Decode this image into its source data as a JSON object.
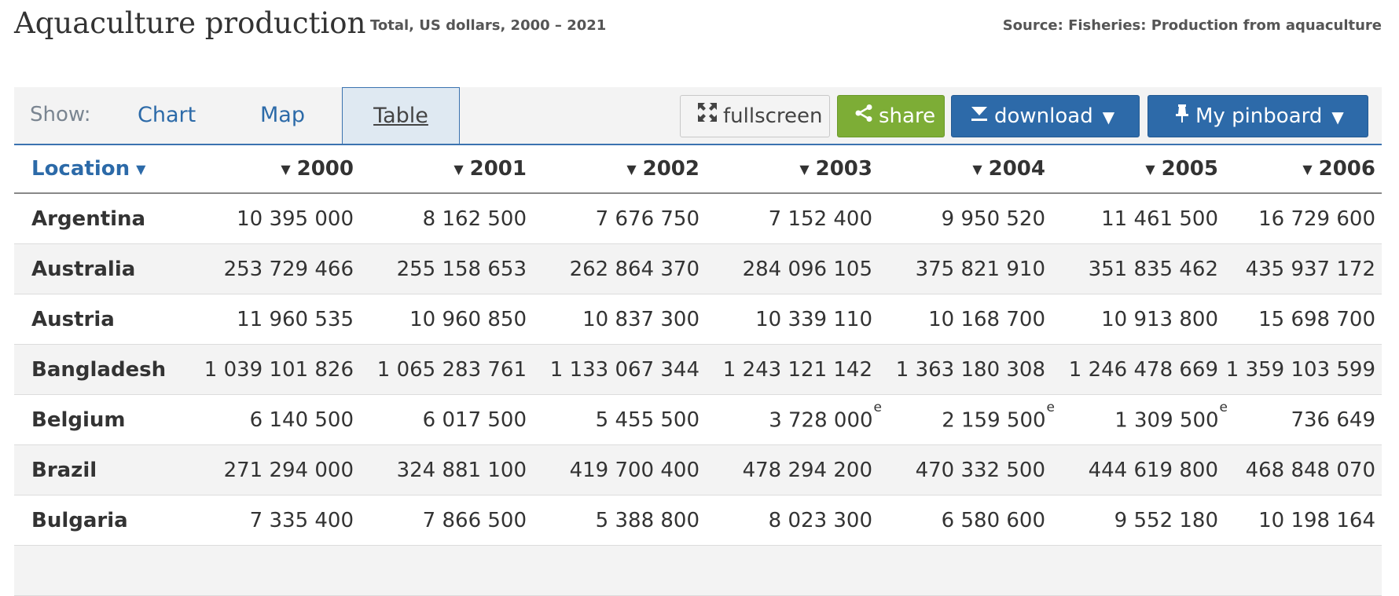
{
  "header": {
    "title": "Aquaculture production",
    "subtitle": "Total, US dollars, 2000 – 2021",
    "source": "Source: Fisheries: Production from aquaculture"
  },
  "toolbar": {
    "show_label": "Show:",
    "tabs": [
      {
        "label": "Chart"
      },
      {
        "label": "Map"
      },
      {
        "label": "Table",
        "active": true
      }
    ],
    "fullscreen_label": "fullscreen",
    "share_label": "share",
    "download_label": "download",
    "pinboard_label": "My pinboard"
  },
  "table": {
    "location_header": "Location",
    "years": [
      "2000",
      "2001",
      "2002",
      "2003",
      "2004",
      "2005",
      "2006"
    ],
    "rows": [
      {
        "country": "Argentina",
        "values": [
          "10 395 000",
          "8 162 500",
          "7 676 750",
          "7 152 400",
          "9 950 520",
          "11 461 500",
          "16 729 600"
        ],
        "flags": [
          "",
          "",
          "",
          "",
          "",
          "",
          ""
        ]
      },
      {
        "country": "Australia",
        "values": [
          "253 729 466",
          "255 158 653",
          "262 864 370",
          "284 096 105",
          "375 821 910",
          "351 835 462",
          "435 937 172"
        ],
        "flags": [
          "",
          "",
          "",
          "",
          "",
          "",
          ""
        ]
      },
      {
        "country": "Austria",
        "values": [
          "11 960 535",
          "10 960 850",
          "10 837 300",
          "10 339 110",
          "10 168 700",
          "10 913 800",
          "15 698 700"
        ],
        "flags": [
          "",
          "",
          "",
          "",
          "",
          "",
          ""
        ]
      },
      {
        "country": "Bangladesh",
        "values": [
          "1 039 101 826",
          "1 065 283 761",
          "1 133 067 344",
          "1 243 121 142",
          "1 363 180 308",
          "1 246 478 669",
          "1 359 103 599"
        ],
        "flags": [
          "",
          "",
          "",
          "",
          "",
          "",
          ""
        ]
      },
      {
        "country": "Belgium",
        "values": [
          "6 140 500",
          "6 017 500",
          "5 455 500",
          "3 728 000",
          "2 159 500",
          "1 309 500",
          "736 649"
        ],
        "flags": [
          "",
          "",
          "",
          "e",
          "e",
          "e",
          ""
        ]
      },
      {
        "country": "Brazil",
        "values": [
          "271 294 000",
          "324 881 100",
          "419 700 400",
          "478 294 200",
          "470 332 500",
          "444 619 800",
          "468 848 070"
        ],
        "flags": [
          "",
          "",
          "",
          "",
          "",
          "",
          ""
        ]
      },
      {
        "country": "Bulgaria",
        "values": [
          "7 335 400",
          "7 866 500",
          "5 388 800",
          "8 023 300",
          "6 580 600",
          "9 552 180",
          "10 198 164"
        ],
        "flags": [
          "",
          "",
          "",
          "",
          "",
          "",
          ""
        ]
      }
    ]
  }
}
